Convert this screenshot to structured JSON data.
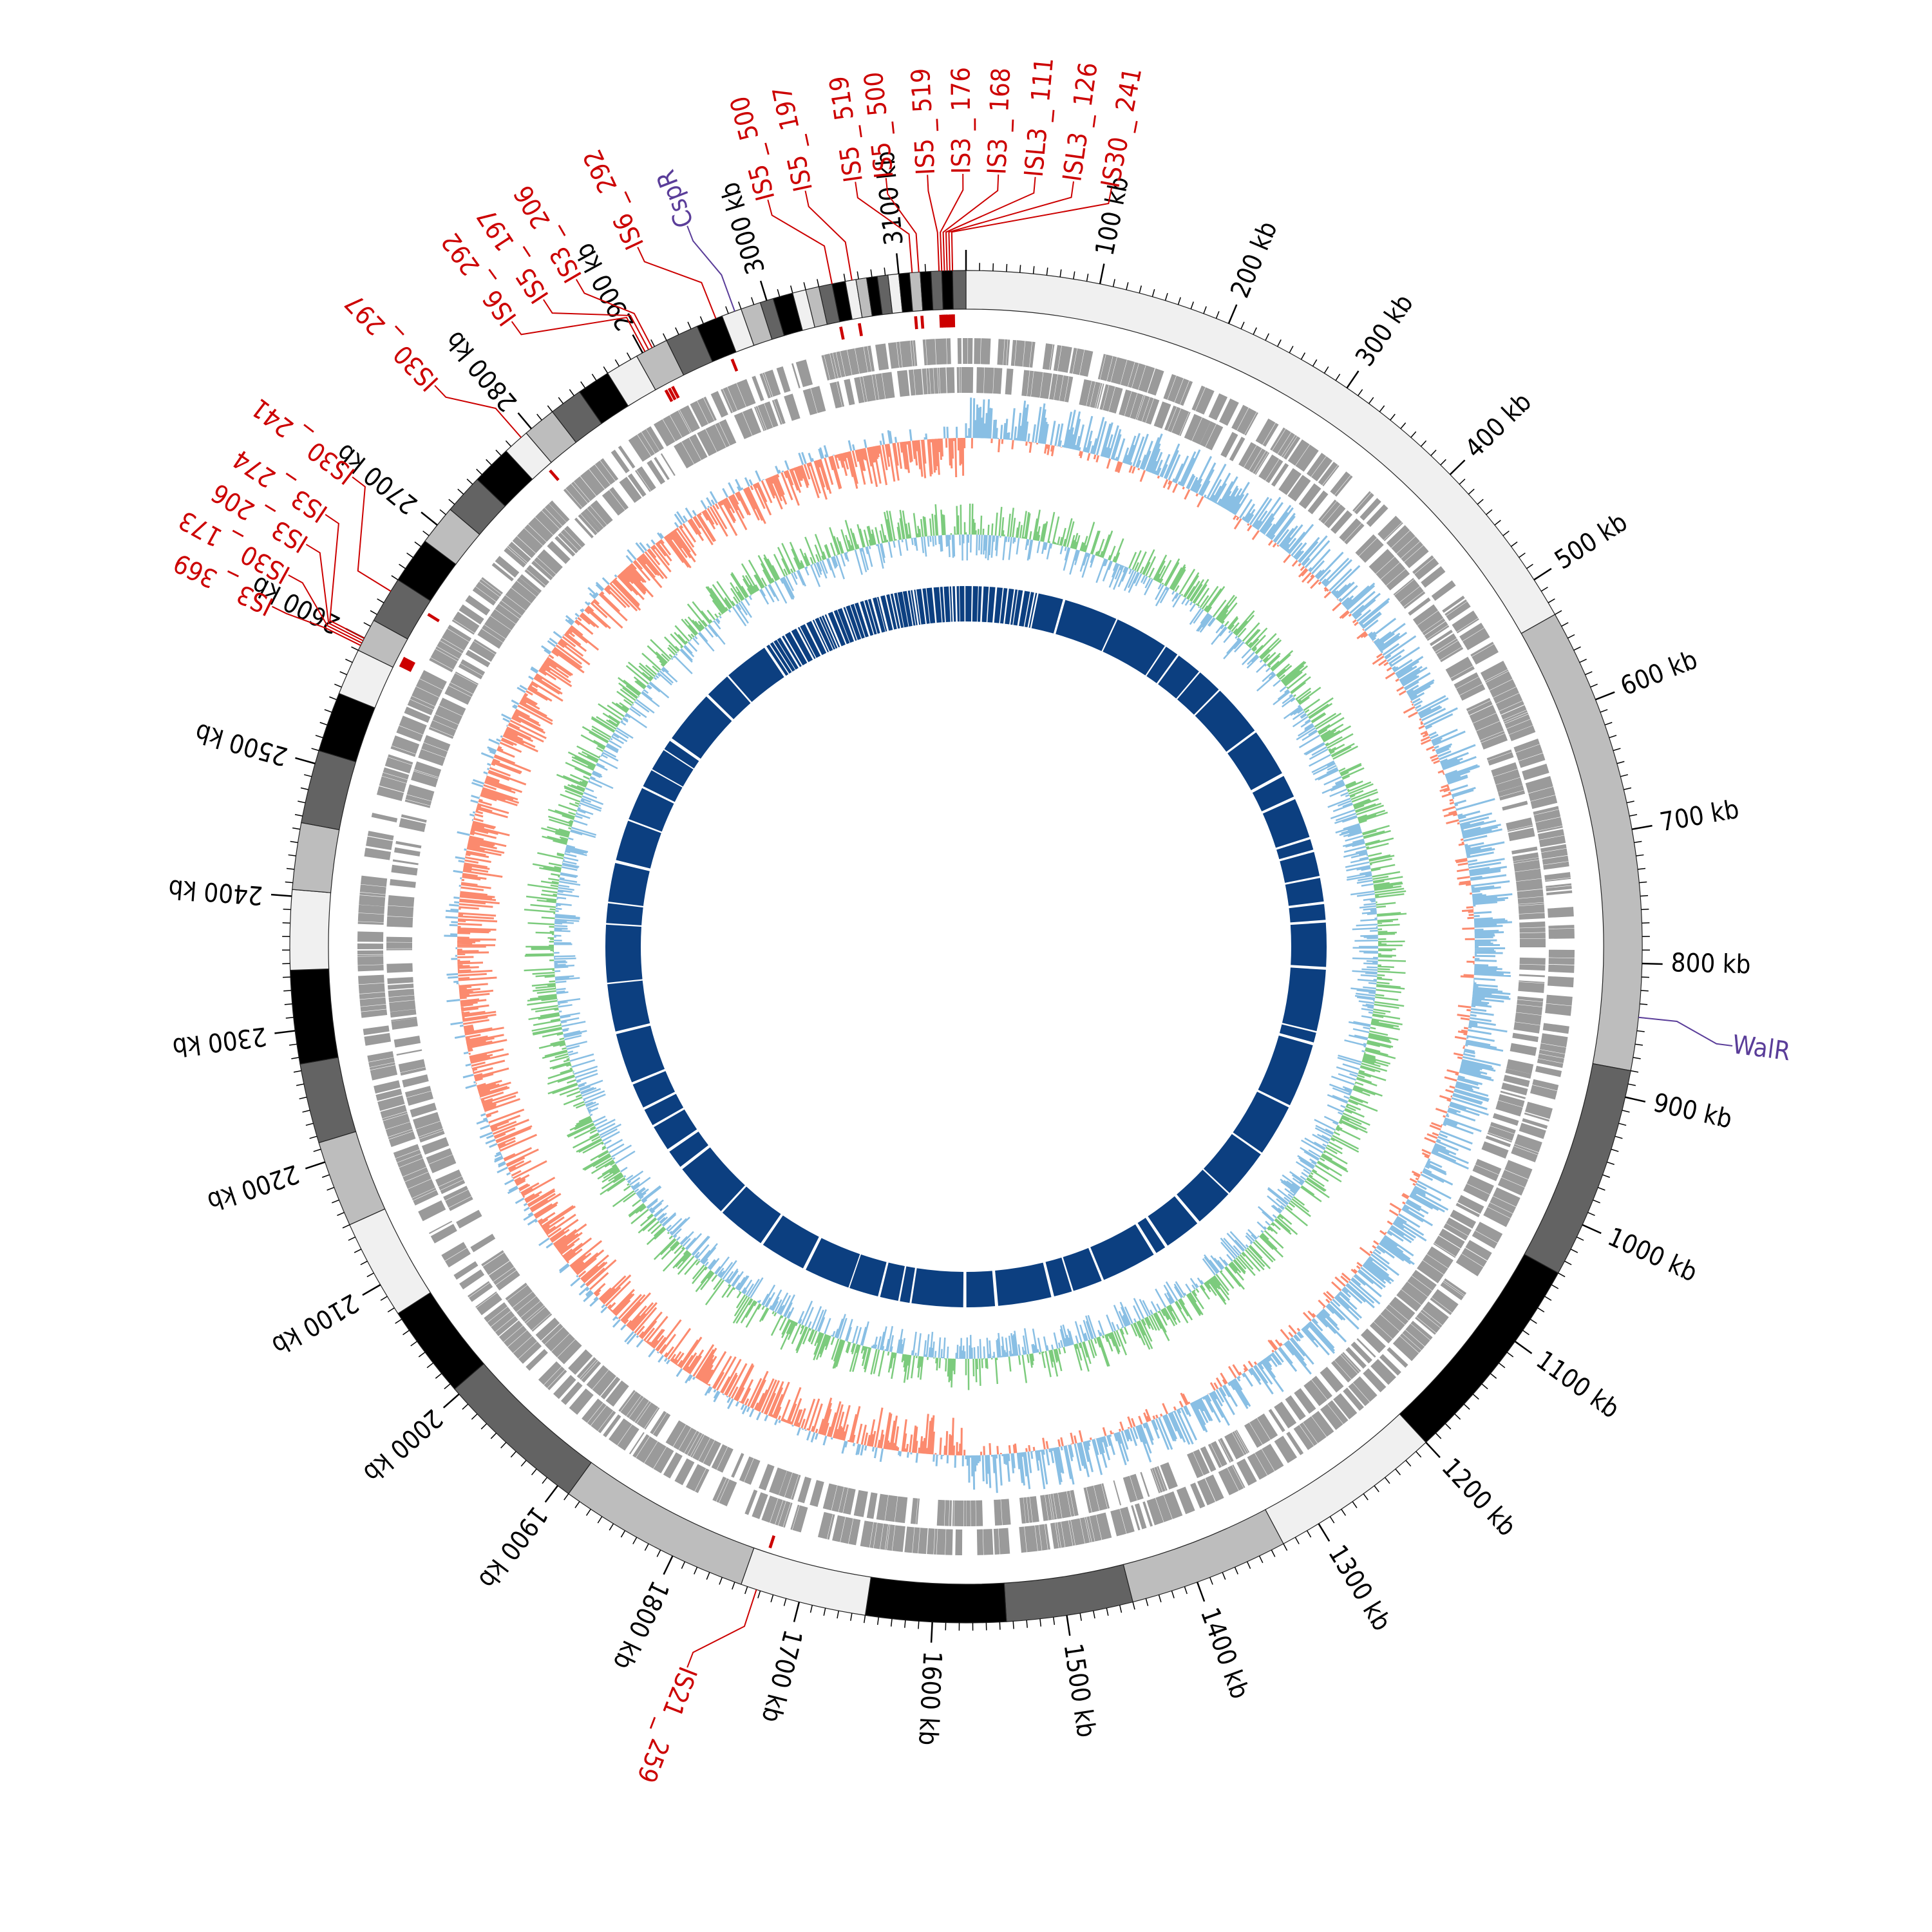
{
  "genome": {
    "length_kb": 3150,
    "tick_step_kb": 100,
    "tick_unit": "kb"
  },
  "colors": {
    "ideogram_shades": [
      "#f0f0f0",
      "#bdbdbd",
      "#636363",
      "#000000"
    ],
    "gene_tracks": "#9a9a9a",
    "gc_skew_positive": "#89bfe4",
    "gc_skew_negative": "#fb8a6e",
    "gc_content": "#7ccb7d",
    "gc_content_low": "#89bfe4",
    "coverage": "#0c3f80",
    "is_element": "#cc0000",
    "regulator": "#5a3d99"
  },
  "ideogram_bands": [
    {
      "start": 0,
      "end": 530,
      "shade": 0
    },
    {
      "start": 530,
      "end": 880,
      "shade": 1
    },
    {
      "start": 880,
      "end": 1040,
      "shade": 2
    },
    {
      "start": 1040,
      "end": 1200,
      "shade": 3
    },
    {
      "start": 1200,
      "end": 1330,
      "shade": 0
    },
    {
      "start": 1330,
      "end": 1450,
      "shade": 1
    },
    {
      "start": 1450,
      "end": 1545,
      "shade": 2
    },
    {
      "start": 1545,
      "end": 1650,
      "shade": 3
    },
    {
      "start": 1650,
      "end": 1745,
      "shade": 0
    },
    {
      "start": 1745,
      "end": 1890,
      "shade": 1
    },
    {
      "start": 1890,
      "end": 2005,
      "shade": 2
    },
    {
      "start": 2005,
      "end": 2075,
      "shade": 3
    },
    {
      "start": 2075,
      "end": 2150,
      "shade": 0
    },
    {
      "start": 2150,
      "end": 2215,
      "shade": 1
    },
    {
      "start": 2215,
      "end": 2275,
      "shade": 2
    },
    {
      "start": 2275,
      "end": 2345,
      "shade": 3
    },
    {
      "start": 2345,
      "end": 2405,
      "shade": 0
    },
    {
      "start": 2405,
      "end": 2455,
      "shade": 1
    },
    {
      "start": 2455,
      "end": 2510,
      "shade": 2
    },
    {
      "start": 2510,
      "end": 2555,
      "shade": 3
    },
    {
      "start": 2555,
      "end": 2590,
      "shade": 0
    },
    {
      "start": 2590,
      "end": 2615,
      "shade": 1
    },
    {
      "start": 2615,
      "end": 2650,
      "shade": 2
    },
    {
      "start": 2650,
      "end": 2685,
      "shade": 3
    },
    {
      "start": 2685,
      "end": 2715,
      "shade": 1
    },
    {
      "start": 2715,
      "end": 2745,
      "shade": 2
    },
    {
      "start": 2745,
      "end": 2775,
      "shade": 3
    },
    {
      "start": 2775,
      "end": 2795,
      "shade": 0
    },
    {
      "start": 2795,
      "end": 2820,
      "shade": 1
    },
    {
      "start": 2820,
      "end": 2845,
      "shade": 2
    },
    {
      "start": 2845,
      "end": 2870,
      "shade": 3
    },
    {
      "start": 2870,
      "end": 2895,
      "shade": 0
    },
    {
      "start": 2895,
      "end": 2920,
      "shade": 1
    },
    {
      "start": 2920,
      "end": 2945,
      "shade": 2
    },
    {
      "start": 2945,
      "end": 2965,
      "shade": 3
    },
    {
      "start": 2965,
      "end": 2980,
      "shade": 0
    },
    {
      "start": 2980,
      "end": 2995,
      "shade": 1
    },
    {
      "start": 2995,
      "end": 3005,
      "shade": 2
    },
    {
      "start": 3005,
      "end": 3020,
      "shade": 3
    },
    {
      "start": 3020,
      "end": 3030,
      "shade": 0
    },
    {
      "start": 3030,
      "end": 3040,
      "shade": 1
    },
    {
      "start": 3040,
      "end": 3050,
      "shade": 2
    },
    {
      "start": 3050,
      "end": 3060,
      "shade": 3
    },
    {
      "start": 3060,
      "end": 3068,
      "shade": 0
    },
    {
      "start": 3068,
      "end": 3076,
      "shade": 1
    },
    {
      "start": 3076,
      "end": 3084,
      "shade": 3
    },
    {
      "start": 3084,
      "end": 3092,
      "shade": 2
    },
    {
      "start": 3092,
      "end": 3100,
      "shade": 0
    },
    {
      "start": 3100,
      "end": 3108,
      "shade": 3
    },
    {
      "start": 3108,
      "end": 3116,
      "shade": 1
    },
    {
      "start": 3116,
      "end": 3124,
      "shade": 3
    },
    {
      "start": 3124,
      "end": 3132,
      "shade": 2
    },
    {
      "start": 3132,
      "end": 3140,
      "shade": 3
    },
    {
      "start": 3140,
      "end": 3150,
      "shade": 2
    }
  ],
  "is_elements": [
    {
      "label": "IS5_500",
      "pos": 3050,
      "label_pos": 3020
    },
    {
      "label": "IS5_197",
      "pos": 3065,
      "label_pos": 3045
    },
    {
      "label": "IS5_519",
      "pos": 3110,
      "label_pos": 3078
    },
    {
      "label": "IS5_500",
      "pos": 3115,
      "label_pos": 3098
    },
    {
      "label": "IS5_519",
      "pos": 3130,
      "label_pos": 3125
    },
    {
      "label": "IS3_176",
      "pos": 3132,
      "label_pos": 3148
    },
    {
      "label": "IS3_168",
      "pos": 3134,
      "label_pos": 21
    },
    {
      "label": "ISL3_111",
      "pos": 3136,
      "label_pos": 45
    },
    {
      "label": "ISL3_126",
      "pos": 3138,
      "label_pos": 70
    },
    {
      "label": "IS30_241",
      "pos": 3140,
      "label_pos": 95
    },
    {
      "label": "IS6_292",
      "pos": 2960,
      "label_pos": 2930
    },
    {
      "label": "IS3_206",
      "pos": 2908,
      "label_pos": 2885
    },
    {
      "label": "IS5_197",
      "pos": 2905,
      "label_pos": 2860
    },
    {
      "label": "IS6_292",
      "pos": 2902,
      "label_pos": 2835
    },
    {
      "label": "IS30_297",
      "pos": 2790,
      "label_pos": 2770
    },
    {
      "label": "IS30_241",
      "pos": 2640,
      "label_pos": 2690
    },
    {
      "label": "IS3_274",
      "pos": 2600,
      "label_pos": 2660
    },
    {
      "label": "IS3_206",
      "pos": 2598,
      "label_pos": 2637
    },
    {
      "label": "IS30_173",
      "pos": 2596,
      "label_pos": 2614
    },
    {
      "label": "IS3_369",
      "pos": 2594,
      "label_pos": 2591
    },
    {
      "label": "IS21_259",
      "pos": 1733,
      "label_pos": 1760
    }
  ],
  "regulators": [
    {
      "label": "CspR",
      "pos": 2975,
      "label_pos": 2965
    },
    {
      "label": "WalR",
      "pos": 840,
      "label_pos": 852
    }
  ]
}
